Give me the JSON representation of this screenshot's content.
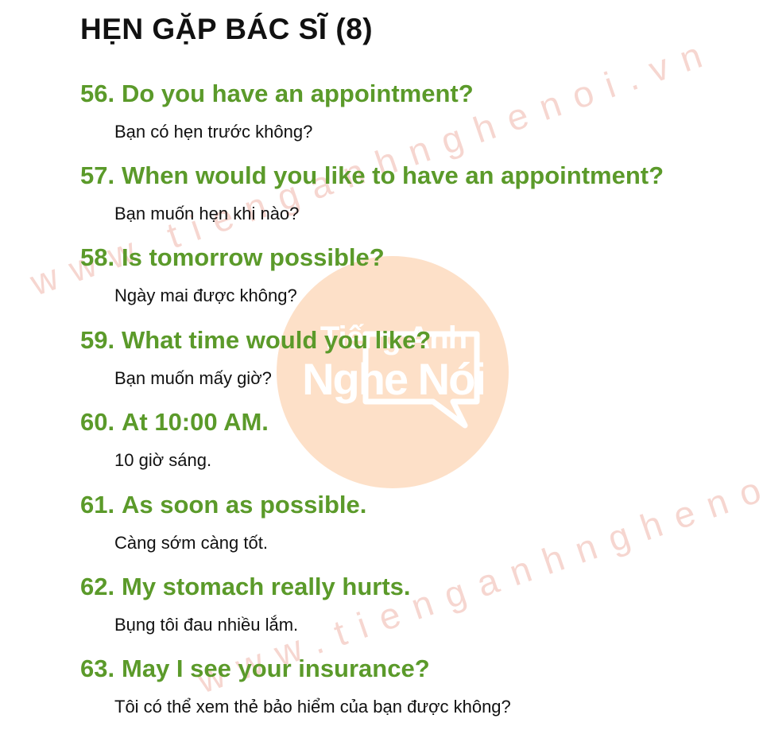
{
  "title": "HẸN GẶP BÁC SĨ (8)",
  "watermark": {
    "logo_lines": [
      "Tiếng Anh",
      "Nghe Nói"
    ],
    "url_text": "www.tienganhnghenoi.vn",
    "logo_color": "#fde0c8"
  },
  "colors": {
    "question": "#5b9a2a",
    "answer": "#111111",
    "title": "#111111"
  },
  "entries": [
    {
      "number": "56.",
      "question": "Do you have an appointment?",
      "answer": "Bạn có hẹn trước không?"
    },
    {
      "number": "57.",
      "question": "When would you like to have an appointment?",
      "answer": "Bạn muốn hẹn khi nào?"
    },
    {
      "number": "58.",
      "question": "Is tomorrow possible?",
      "answer": "Ngày mai được không?"
    },
    {
      "number": "59.",
      "question": "What time would you like?",
      "answer": "Bạn muốn mấy giờ?"
    },
    {
      "number": "60.",
      "question": "At 10:00 AM.",
      "answer": "10 giờ sáng."
    },
    {
      "number": "61.",
      "question": "As soon as possible.",
      "answer": "Càng sớm càng tốt."
    },
    {
      "number": "62.",
      "question": "My stomach really hurts.",
      "answer": "Bụng tôi đau nhiều lắm."
    },
    {
      "number": "63.",
      "question": "May I see your insurance?",
      "answer": "Tôi có thể xem thẻ bảo hiểm của bạn được không?"
    }
  ]
}
